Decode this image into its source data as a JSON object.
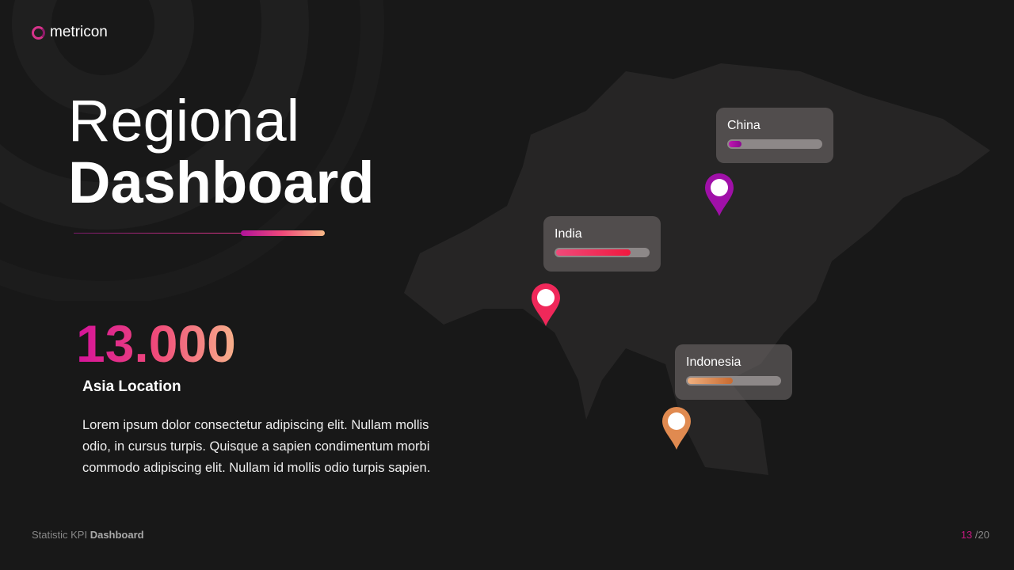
{
  "brand": {
    "name": "metricon",
    "color": "#d6338a"
  },
  "title": {
    "line1": "Regional",
    "line2": "Dashboard"
  },
  "kpi": {
    "value": "13.000",
    "label": "Asia Location",
    "description": "Lorem ipsum dolor consectetur adipiscing elit. Nullam mollis odio, in cursus turpis. Quisque a sapien condimentum morbi commodo adipiscing elit. Nullam id mollis odio turpis sapien."
  },
  "locations": [
    {
      "name": "China",
      "progress_percent": 17,
      "color": "#a010a8"
    },
    {
      "name": "India",
      "progress_percent": 82,
      "color": "#f0285a"
    },
    {
      "name": "Indonesia",
      "progress_percent": 51,
      "color": "#e08a50"
    }
  ],
  "footer": {
    "prefix": "Statistic KPI",
    "bold": "Dashboard",
    "page_current": "13",
    "page_total": "/20"
  }
}
